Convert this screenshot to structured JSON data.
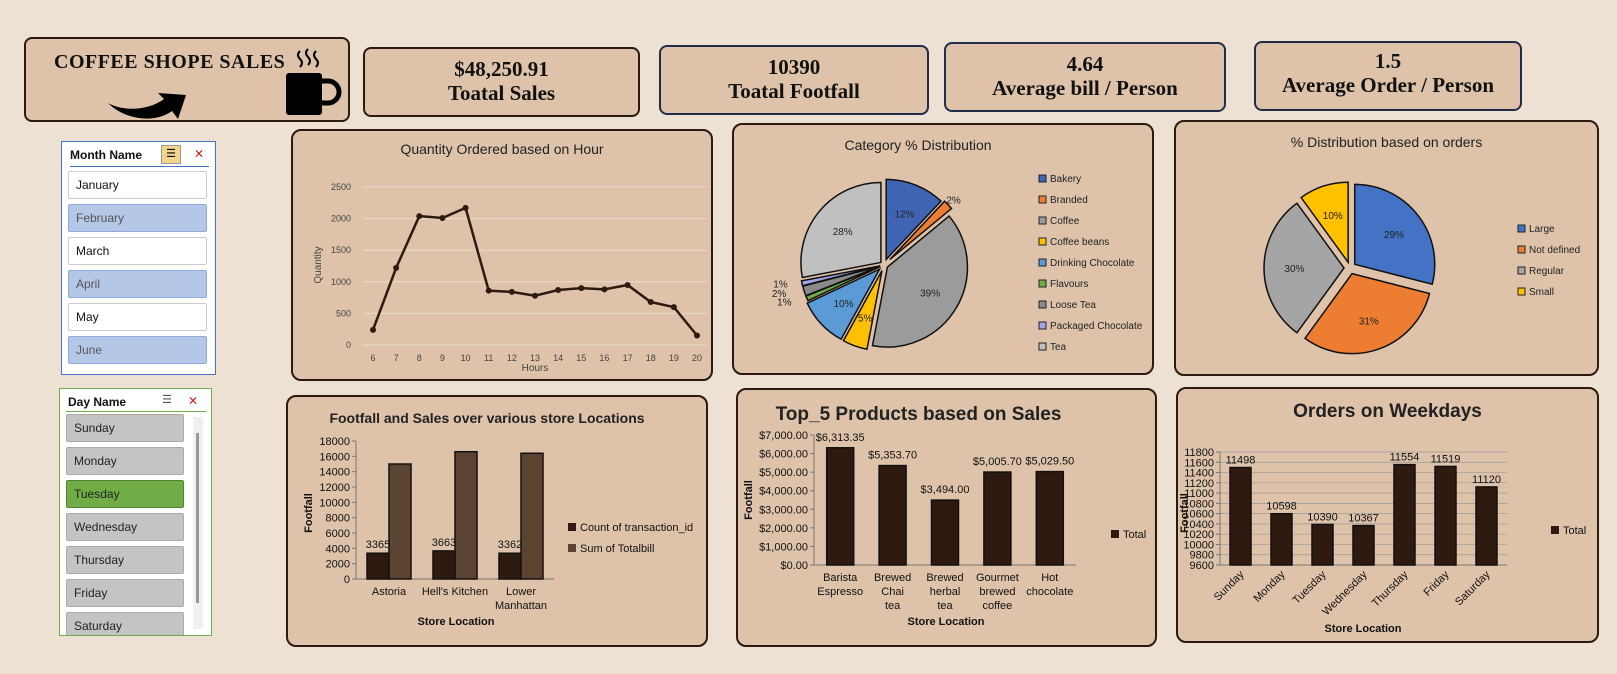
{
  "title_card": {
    "title": "COFFEE SHOPE SALES"
  },
  "kpis": [
    {
      "value": "$48,250.91",
      "label": "Toatal Sales"
    },
    {
      "value": "10390",
      "label": "Toatal Footfall"
    },
    {
      "value": "4.64",
      "label": "Average bill / Person"
    },
    {
      "value": "1.5",
      "label": "Average  Order / Person"
    }
  ],
  "month_slicer": {
    "header": "Month Name",
    "items": [
      {
        "label": "January",
        "selected": false
      },
      {
        "label": "February",
        "selected": true
      },
      {
        "label": "March",
        "selected": false
      },
      {
        "label": "April",
        "selected": true
      },
      {
        "label": "May",
        "selected": false
      },
      {
        "label": "June",
        "selected": true
      }
    ]
  },
  "day_slicer": {
    "header": "Day Name",
    "items": [
      {
        "label": "Sunday",
        "selected": false
      },
      {
        "label": "Monday",
        "selected": false
      },
      {
        "label": "Tuesday",
        "selected": true
      },
      {
        "label": "Wednesday",
        "selected": false
      },
      {
        "label": "Thursday",
        "selected": false
      },
      {
        "label": "Friday",
        "selected": false
      },
      {
        "label": "Saturday",
        "selected": false
      }
    ]
  },
  "colors": {
    "bg": "#ece1d2",
    "card": "#dec3aa",
    "dark_bar": "#2e1a10",
    "light_bar": "#5c4432",
    "selected_green": "#70ad47",
    "selected_blue": "#b4c7e7"
  },
  "chart_data": [
    {
      "type": "line",
      "title": "Quantity Ordered based on Hour",
      "xlabel": "Hours",
      "ylabel": "Quantity",
      "x": [
        6,
        7,
        8,
        9,
        10,
        11,
        12,
        13,
        14,
        15,
        16,
        17,
        18,
        19,
        20
      ],
      "values": [
        240,
        1220,
        2040,
        2010,
        2170,
        860,
        840,
        780,
        870,
        900,
        880,
        950,
        680,
        600,
        150
      ],
      "yticks": [
        "0",
        "500",
        "1000",
        "1500",
        "2000",
        "2500"
      ],
      "ylim": [
        0,
        2500
      ],
      "grid": true
    },
    {
      "type": "pie",
      "title": "Category % Distribution",
      "legend": [
        "Bakery",
        "Branded",
        "Coffee",
        "Coffee beans",
        "Drinking Chocolate",
        "Flavours",
        "Loose Tea",
        "Packaged Chocolate",
        "Tea"
      ],
      "values": [
        12,
        2,
        39,
        5,
        10,
        1,
        2,
        1,
        28
      ],
      "labels": [
        "12%",
        "2%",
        "39%",
        "5%",
        "10%",
        "1%",
        "2%",
        "1%",
        "28%"
      ],
      "colors": [
        "#4064b4",
        "#ed7d31",
        "#9b9b9b",
        "#ffc000",
        "#5b9bd5",
        "#70ad47",
        "#8a8a8a",
        "#a4a4e4",
        "#c0c0c0"
      ]
    },
    {
      "type": "pie",
      "title": "% Distribution based on orders",
      "legend": [
        "Large",
        "Not defined",
        "Regular",
        "Small"
      ],
      "values": [
        29,
        31,
        30,
        10
      ],
      "labels": [
        "29%",
        "31%",
        "30%",
        "10%"
      ],
      "colors": [
        "#4472c4",
        "#ed7d31",
        "#a5a5a5",
        "#ffc000"
      ]
    },
    {
      "type": "bar",
      "title": "Footfall and Sales over various store Locations",
      "xlabel": "Store Location",
      "ylabel": "Footfall",
      "categories": [
        "Astoria",
        "Hell's Kitchen",
        "Lower Manhattan"
      ],
      "series": [
        {
          "name": "Count of transaction_id",
          "values": [
            3365,
            3663,
            3362
          ],
          "labels": [
            "3365",
            "3663",
            "3362"
          ]
        },
        {
          "name": "Sum of Totalbill",
          "values": [
            15000,
            16600,
            16400
          ]
        }
      ],
      "yticks": [
        "0",
        "2000",
        "4000",
        "6000",
        "8000",
        "10000",
        "12000",
        "14000",
        "16000",
        "18000"
      ],
      "ylim": [
        0,
        18000
      ]
    },
    {
      "type": "bar",
      "title": "Top_5 Products based on Sales",
      "xlabel": "Store Location",
      "ylabel": "Footfall",
      "categories": [
        "Barista Espresso",
        "Brewed Chai tea",
        "Brewed herbal tea",
        "Gourmet brewed coffee",
        "Hot chocolate"
      ],
      "series": [
        {
          "name": "Total",
          "values": [
            6313.35,
            5353.7,
            3494.0,
            5005.7,
            5029.5
          ],
          "labels": [
            "$6,313.35",
            "$5,353.70",
            "$3,494.00",
            "$5,005.70",
            "$5,029.50"
          ]
        }
      ],
      "yticks": [
        "$0.00",
        "$1,000.00",
        "$2,000.00",
        "$3,000.00",
        "$4,000.00",
        "$5,000.00",
        "$6,000.00",
        "$7,000.00"
      ],
      "ylim": [
        0,
        7000
      ]
    },
    {
      "type": "bar",
      "title": "Orders on Weekdays",
      "xlabel": "Store Location",
      "ylabel": "Footfall",
      "categories": [
        "Sunday",
        "Monday",
        "Tuesday",
        "Wednesday",
        "Thursday",
        "Friday",
        "Saturday"
      ],
      "series": [
        {
          "name": "Total",
          "values": [
            11498,
            10598,
            10390,
            10367,
            11554,
            11519,
            11120
          ],
          "labels": [
            "11498",
            "10598",
            "10390",
            "10367",
            "11554",
            "11519",
            "11120"
          ]
        }
      ],
      "yticks": [
        "9600",
        "9800",
        "10000",
        "10200",
        "10400",
        "10600",
        "10800",
        "11000",
        "11200",
        "11400",
        "11600",
        "11800"
      ],
      "ylim": [
        9600,
        11800
      ]
    }
  ]
}
